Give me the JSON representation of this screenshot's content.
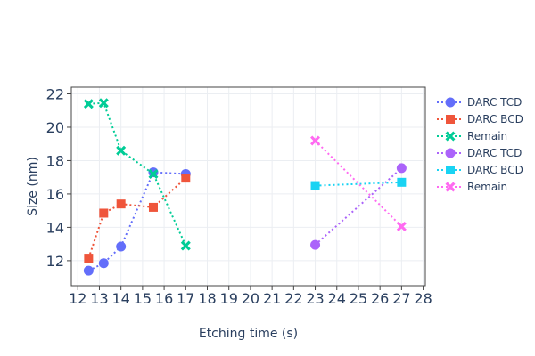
{
  "chart_data": {
    "type": "line",
    "title": "",
    "xlabel": "Etching time (s)",
    "ylabel": "Size (nm)",
    "xlim": [
      11.7,
      28.1
    ],
    "ylim": [
      10.5,
      22.4
    ],
    "xticks": [
      12,
      13,
      14,
      15,
      16,
      17,
      18,
      19,
      20,
      21,
      22,
      23,
      24,
      25,
      26,
      27,
      28
    ],
    "yticks": [
      12,
      14,
      16,
      18,
      20,
      22
    ],
    "grid": true,
    "legend_position": "right",
    "series": [
      {
        "name": "DARC TCD",
        "color": "#636efa",
        "marker": "circle",
        "x": [
          12.5,
          13.2,
          14,
          15.5,
          17
        ],
        "y": [
          11.4,
          11.85,
          12.85,
          17.3,
          17.2
        ]
      },
      {
        "name": "DARC BCD",
        "color": "#ef553b",
        "marker": "square",
        "x": [
          12.5,
          13.2,
          14,
          15.5,
          17
        ],
        "y": [
          12.15,
          14.85,
          15.4,
          15.2,
          16.95
        ]
      },
      {
        "name": "Remain",
        "color": "#00cc96",
        "marker": "x",
        "x": [
          12.5,
          13.2,
          14,
          15.5,
          17
        ],
        "y": [
          21.4,
          21.45,
          18.6,
          17.2,
          12.9
        ]
      },
      {
        "name": "DARC TCD",
        "color": "#ab63fa",
        "marker": "circle",
        "x": [
          23,
          27
        ],
        "y": [
          12.95,
          17.55
        ]
      },
      {
        "name": "DARC BCD",
        "color": "#19d3f3",
        "marker": "square",
        "x": [
          23,
          27
        ],
        "y": [
          16.5,
          16.7
        ]
      },
      {
        "name": "Remain",
        "color": "#ff6af1",
        "marker": "x",
        "x": [
          23,
          27
        ],
        "y": [
          19.2,
          14.05
        ]
      }
    ]
  }
}
